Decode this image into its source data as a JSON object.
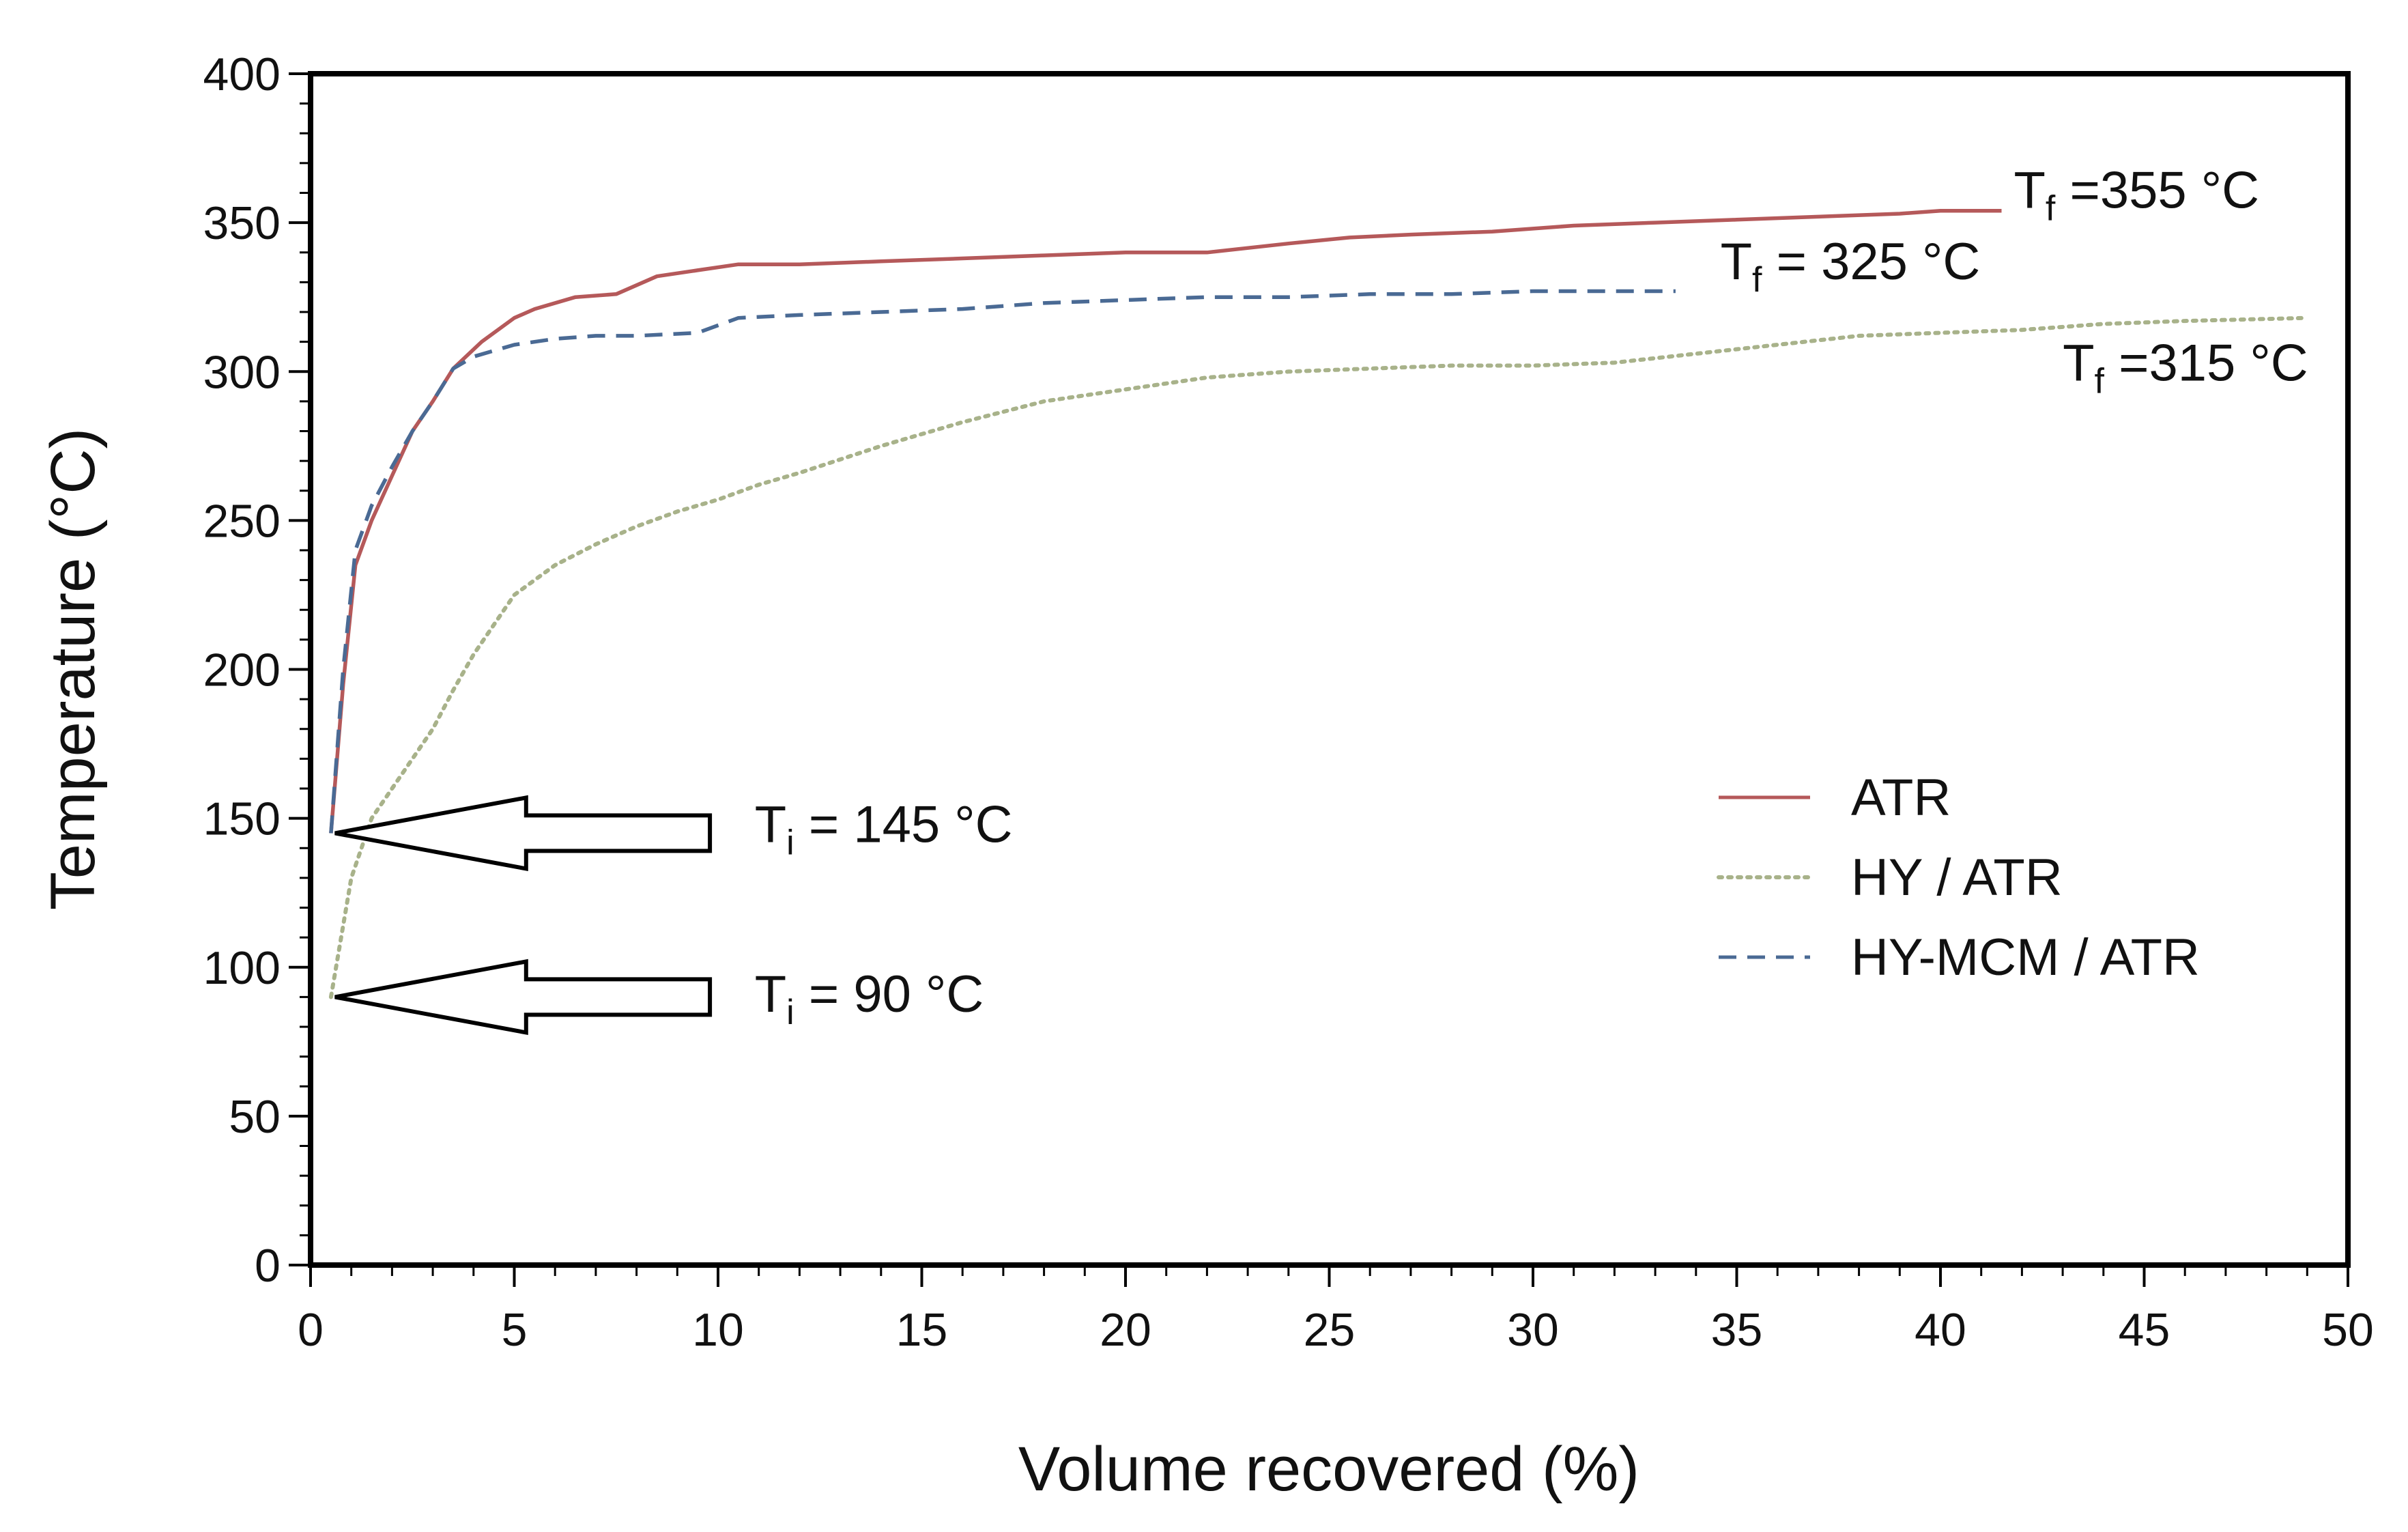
{
  "chart_data": {
    "type": "line",
    "title": "",
    "xlabel": "Volume recovered (%)",
    "ylabel": "Temperature (°C)",
    "xlim": [
      0,
      50
    ],
    "ylim": [
      0,
      400
    ],
    "xticks": [
      0,
      5,
      10,
      15,
      20,
      25,
      30,
      35,
      40,
      45,
      50
    ],
    "yticks": [
      0,
      50,
      100,
      150,
      200,
      250,
      300,
      350,
      400
    ],
    "grid": false,
    "legend_position": "right-middle",
    "series": [
      {
        "name": "ATR",
        "color": "#b5595a",
        "style": "solid",
        "x": [
          0.5,
          0.8,
          1.1,
          1.5,
          2.0,
          2.5,
          3.0,
          3.5,
          4.2,
          5.0,
          5.5,
          6.5,
          7.5,
          8.5,
          9.5,
          10.5,
          12,
          14,
          16,
          18,
          20,
          22,
          24,
          25.5,
          27,
          29,
          31,
          33,
          35,
          37,
          39,
          40,
          41.5
        ],
        "values": [
          145,
          195,
          235,
          250,
          265,
          280,
          290,
          301,
          310,
          318,
          321,
          325,
          326,
          332,
          334,
          336,
          336,
          337,
          338,
          339,
          340,
          340,
          343,
          345,
          346,
          347,
          349,
          350,
          351,
          352,
          353,
          354,
          354
        ]
      },
      {
        "name": "HY / ATR",
        "color": "#a8b28a",
        "style": "dotted",
        "x": [
          0.5,
          1.0,
          1.5,
          2.0,
          2.5,
          3.0,
          3.5,
          4.0,
          5.0,
          6.0,
          7.0,
          8.0,
          9.0,
          10.0,
          11,
          12,
          14,
          16,
          18,
          20,
          22,
          24,
          26,
          28,
          30,
          32,
          34,
          36,
          38,
          40,
          42,
          44,
          46,
          49
        ],
        "values": [
          90,
          130,
          150,
          160,
          170,
          180,
          193,
          205,
          225,
          235,
          242,
          248,
          253,
          257,
          262,
          266,
          275,
          283,
          290,
          294,
          298,
          300,
          301,
          302,
          302,
          303,
          306,
          309,
          312,
          313,
          314,
          316,
          317,
          318
        ]
      },
      {
        "name": "HY-MCM / ATR",
        "color": "#4a6a94",
        "style": "dashed",
        "x": [
          0.5,
          0.8,
          1.1,
          1.5,
          2.0,
          2.5,
          3.0,
          3.5,
          4.0,
          5.0,
          6.0,
          7.0,
          8.0,
          9.5,
          10.5,
          12,
          14,
          16,
          18,
          20,
          22,
          24,
          26,
          28,
          30,
          32,
          33.5
        ],
        "values": [
          145,
          200,
          240,
          255,
          268,
          280,
          290,
          301,
          305,
          309,
          311,
          312,
          312,
          313,
          318,
          319,
          320,
          321,
          323,
          324,
          325,
          325,
          326,
          326,
          327,
          327,
          327
        ]
      }
    ],
    "annotations": [
      {
        "id": "tf_atr",
        "main": "T",
        "sub": "f",
        "value": " =355 °C",
        "x": 41.8,
        "y": 355
      },
      {
        "id": "tf_hymcm",
        "main": "T",
        "sub": "f",
        "value": " = 325 °C",
        "x": 34.6,
        "y": 331
      },
      {
        "id": "tf_hy",
        "main": "T",
        "sub": "f",
        "value": " =315 °C",
        "x": 43.0,
        "y": 297
      },
      {
        "id": "ti_145",
        "main": "T",
        "sub": "i",
        "value": " = 145 °C",
        "x": 10.9,
        "y": 142
      },
      {
        "id": "ti_90",
        "main": "T",
        "sub": "i",
        "value": " = 90 °C",
        "x": 10.9,
        "y": 85
      }
    ],
    "arrows": [
      {
        "id": "arrow_145",
        "points_to_y": 145,
        "tip_x": 0.6,
        "tail_x": 9.8
      },
      {
        "id": "arrow_90",
        "points_to_y": 90,
        "tip_x": 0.6,
        "tail_x": 9.8
      }
    ]
  }
}
